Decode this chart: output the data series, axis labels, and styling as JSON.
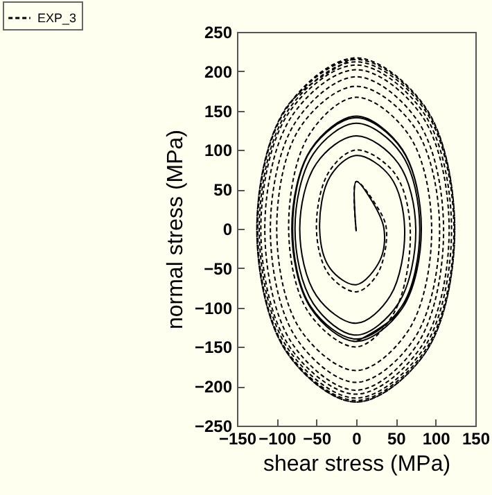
{
  "chart_data": {
    "type": "line",
    "xlabel": "shear stress  (MPa)",
    "ylabel": "normal stress  (MPa)",
    "xlim": [
      -150,
      150
    ],
    "ylim": [
      -250,
      250
    ],
    "xticks": [
      -150,
      -100,
      -50,
      0,
      50,
      100,
      150
    ],
    "yticks": [
      -250,
      -200,
      -150,
      -100,
      -50,
      0,
      50,
      100,
      150,
      200,
      250
    ],
    "grid": false,
    "legend": "top left",
    "series": [
      {
        "color": "#000000",
        "line_style": "solid",
        "x": [
          0,
          0,
          20,
          35,
          30,
          0,
          -33,
          -46,
          -33,
          0,
          43,
          61,
          43,
          0,
          -50,
          -71,
          -50,
          0,
          53,
          75,
          53,
          0,
          -54,
          -77,
          -54,
          0,
          57,
          80,
          57,
          0,
          -57,
          -80,
          -57,
          0,
          58,
          82,
          58,
          0,
          -57,
          -81,
          -57,
          0,
          58,
          82,
          58,
          0
        ],
        "values": [
          -3,
          60,
          35,
          0,
          -40,
          -71,
          -50,
          0,
          66,
          93,
          66,
          0,
          -85,
          -120,
          -85,
          0,
          83,
          118,
          83,
          0,
          -95,
          -135,
          -95,
          0,
          95,
          134,
          95,
          0,
          -99,
          -140,
          -99,
          0,
          100,
          141,
          100,
          0,
          -101,
          -143,
          -101,
          0,
          101,
          143,
          101,
          0,
          -101,
          -143
        ]
      },
      {
        "name": "EXP_3",
        "color": "#000000",
        "line_style": "dashed",
        "x": [
          0,
          0,
          25,
          38,
          27,
          0,
          -35,
          -50,
          -35,
          0,
          48,
          68,
          48,
          0,
          -60,
          -85,
          -60,
          0,
          67,
          95,
          67,
          0,
          -71,
          -100,
          -71,
          0,
          74,
          105,
          74,
          0,
          -76,
          -108,
          -76,
          0,
          78,
          110,
          78,
          0,
          -81,
          -115,
          -81,
          0,
          83,
          117,
          83,
          0,
          -85,
          -120,
          -85,
          0,
          85,
          120,
          85,
          0,
          -86,
          -122,
          -86,
          0,
          87,
          123,
          87,
          0,
          -88,
          -124,
          -88,
          0,
          88,
          124,
          88,
          0,
          -88,
          -125,
          -88,
          0,
          88,
          124,
          88,
          0,
          -88,
          -125,
          -88,
          0
        ],
        "values": [
          -3,
          60,
          30,
          0,
          -57,
          -80,
          -57,
          0,
          71,
          100,
          71,
          0,
          -106,
          -150,
          -106,
          0,
          118,
          167,
          118,
          0,
          -127,
          -180,
          -127,
          0,
          128,
          181,
          128,
          0,
          -138,
          -195,
          -138,
          0,
          136,
          193,
          136,
          0,
          -145,
          -205,
          -145,
          0,
          143,
          202,
          143,
          0,
          -148,
          -210,
          -148,
          0,
          147,
          208,
          147,
          0,
          -152,
          -215,
          -152,
          0,
          150,
          212,
          150,
          0,
          -154,
          -218,
          -154,
          0,
          152,
          215,
          152,
          0,
          -156,
          -220,
          -156,
          0,
          153,
          217,
          153,
          0,
          -156,
          -220,
          -156,
          0,
          154,
          218
        ]
      }
    ]
  }
}
